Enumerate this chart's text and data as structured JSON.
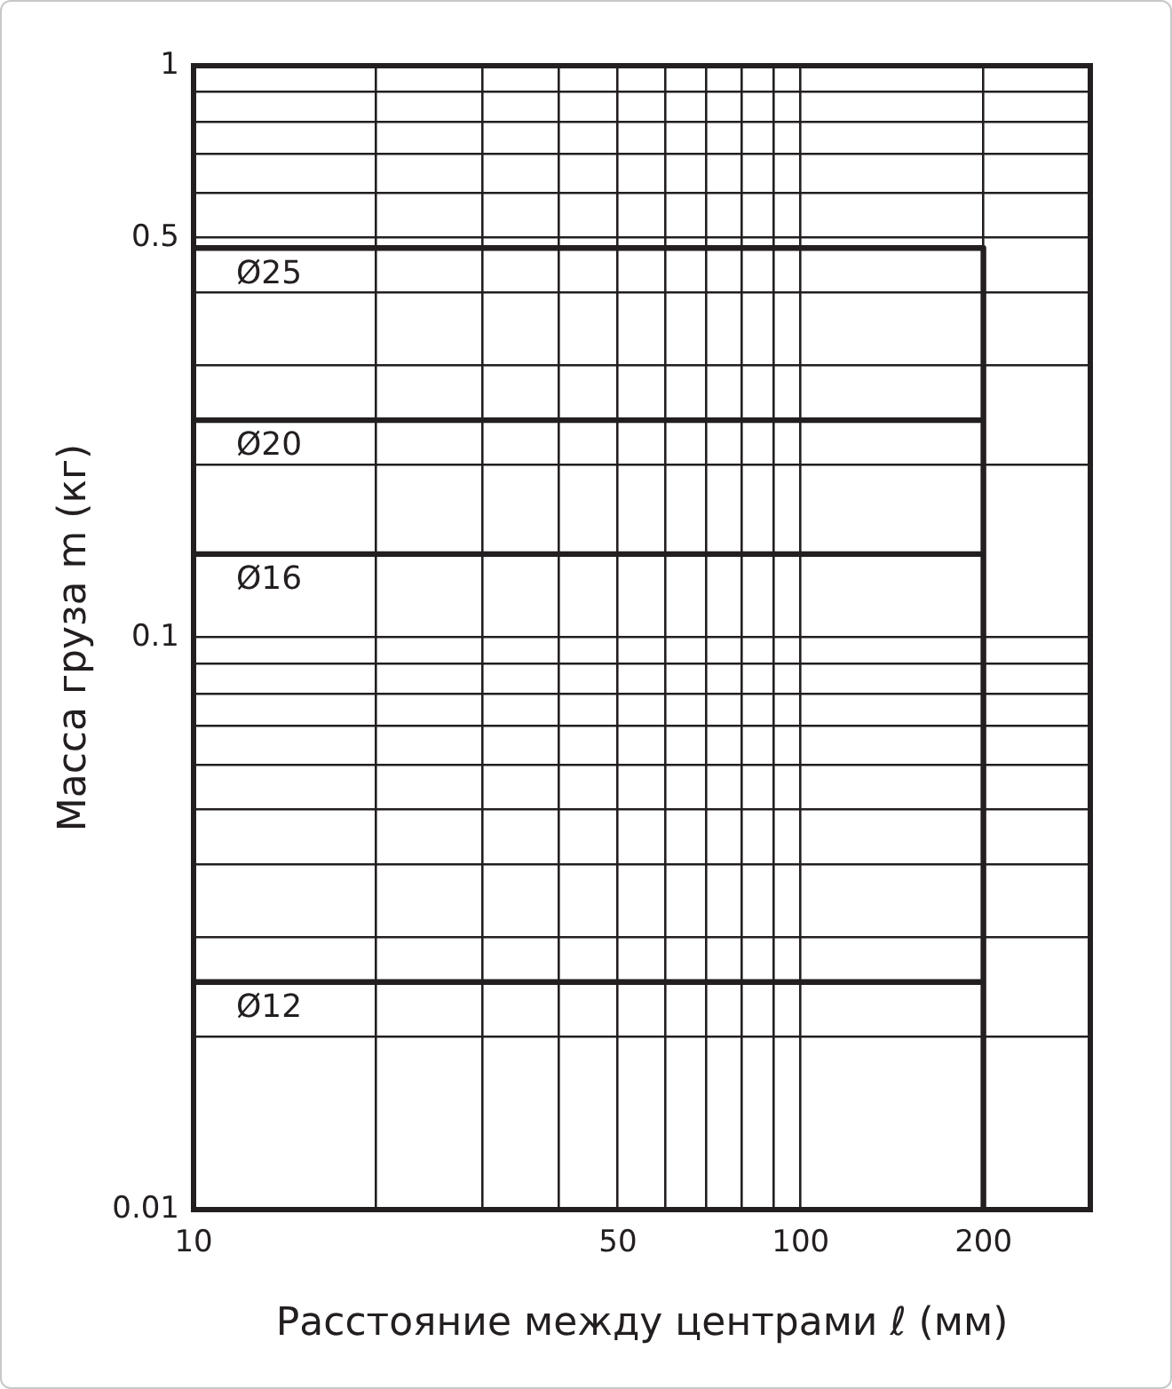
{
  "chart_data": {
    "type": "line",
    "xlabel": "Расстояние между центрами ℓ (мм)",
    "ylabel": "Масса груза m (кг)",
    "log": "xy",
    "xlim": [
      10,
      300
    ],
    "ylim": [
      0.01,
      1
    ],
    "xticks": [
      10,
      {
        "value": 20,
        "label": null
      },
      {
        "value": 30,
        "label": null
      },
      {
        "value": 40,
        "label": null
      },
      50,
      {
        "value": 60,
        "label": null
      },
      {
        "value": 70,
        "label": null
      },
      {
        "value": 80,
        "label": null
      },
      {
        "value": 90,
        "label": null
      },
      100,
      200
    ],
    "yticks": [
      0.01,
      {
        "value": 0.02,
        "label": null
      },
      {
        "value": 0.03,
        "label": null
      },
      {
        "value": 0.04,
        "label": null
      },
      {
        "value": 0.05,
        "label": null
      },
      {
        "value": 0.06,
        "label": null
      },
      {
        "value": 0.07,
        "label": null
      },
      {
        "value": 0.08,
        "label": null
      },
      {
        "value": 0.09,
        "label": null
      },
      0.1,
      {
        "value": 0.2,
        "label": null
      },
      {
        "value": 0.3,
        "label": null
      },
      {
        "value": 0.4,
        "label": null
      },
      0.5,
      {
        "value": 0.6,
        "label": null
      },
      {
        "value": 0.7,
        "label": null
      },
      {
        "value": 0.8,
        "label": null
      },
      {
        "value": 0.9,
        "label": null
      },
      1
    ],
    "grid": true,
    "marker": "none",
    "x": [
      10,
      200
    ],
    "series": [
      {
        "name": "Ø25",
        "type": "step",
        "color": "#231f20",
        "values": [
          0.48,
          0.01
        ]
      },
      {
        "name": "Ø20",
        "color": "#231f20",
        "values": [
          0.24,
          0.24
        ]
      },
      {
        "name": "Ø16",
        "color": "#231f20",
        "values": [
          0.14,
          0.14
        ]
      },
      {
        "name": "Ø12",
        "color": "#231f20",
        "values": [
          0.025,
          0.025
        ]
      }
    ]
  }
}
